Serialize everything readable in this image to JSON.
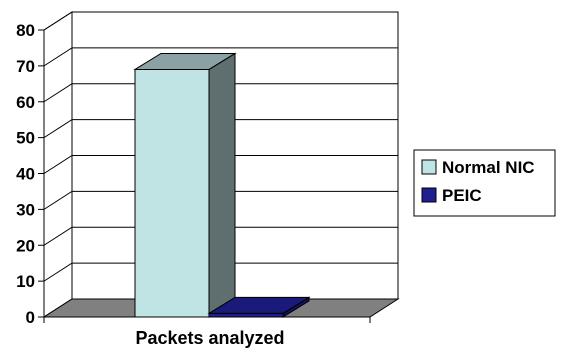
{
  "chart_data": {
    "type": "bar",
    "three_d": true,
    "categories": [
      "Packets analyzed"
    ],
    "xlabel": "Packets analyzed",
    "ylabel": "",
    "title": "",
    "ylim": [
      0,
      80
    ],
    "yticks": [
      0,
      10,
      20,
      30,
      40,
      50,
      60,
      70,
      80
    ],
    "grid": true,
    "legend_position": "right",
    "series": [
      {
        "name": "Normal NIC",
        "values": [
          69
        ],
        "color": "#c0e4e4"
      },
      {
        "name": "PEIC",
        "values": [
          1
        ],
        "color": "#1f1f8f"
      }
    ],
    "colors": {
      "floor": "#808080",
      "wall": "#ffffff",
      "grid": "#000000"
    }
  }
}
